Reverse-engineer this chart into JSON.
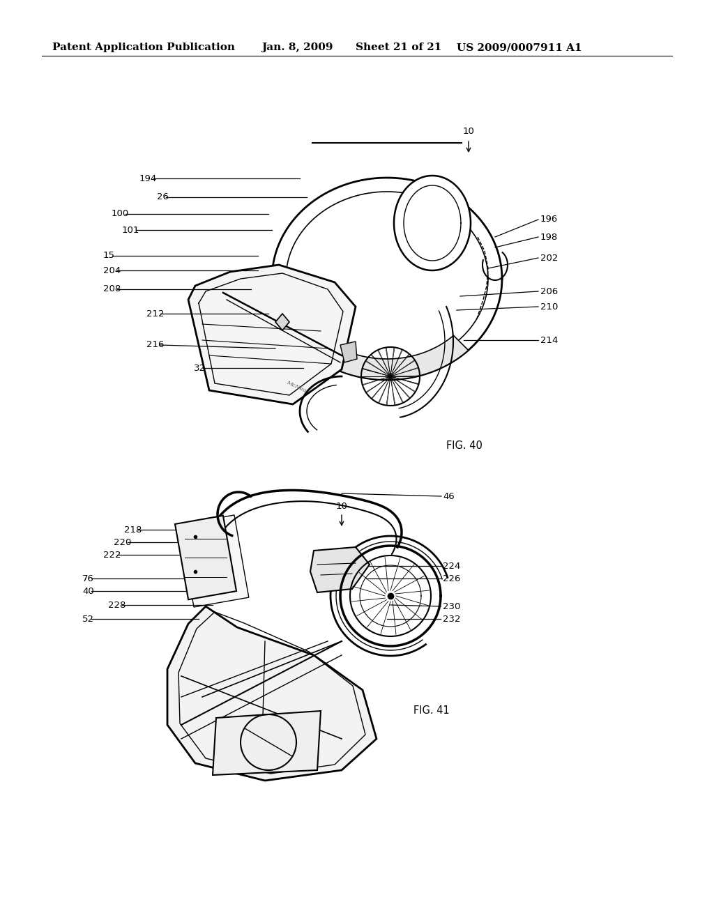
{
  "bg_color": "#ffffff",
  "fig_width": 10.24,
  "fig_height": 13.2,
  "dpi": 100,
  "header_text": "Patent Application Publication",
  "header_date": "Jan. 8, 2009",
  "header_sheet": "Sheet 21 of 21",
  "header_patent": "US 2009/0007911 A1",
  "header_fontsize": 11,
  "annotation_fontsize": 9.5,
  "label_fontsize": 10.5,
  "line_color": "#000000",
  "fig40_label": "FIG. 40",
  "fig41_label": "FIG. 41"
}
